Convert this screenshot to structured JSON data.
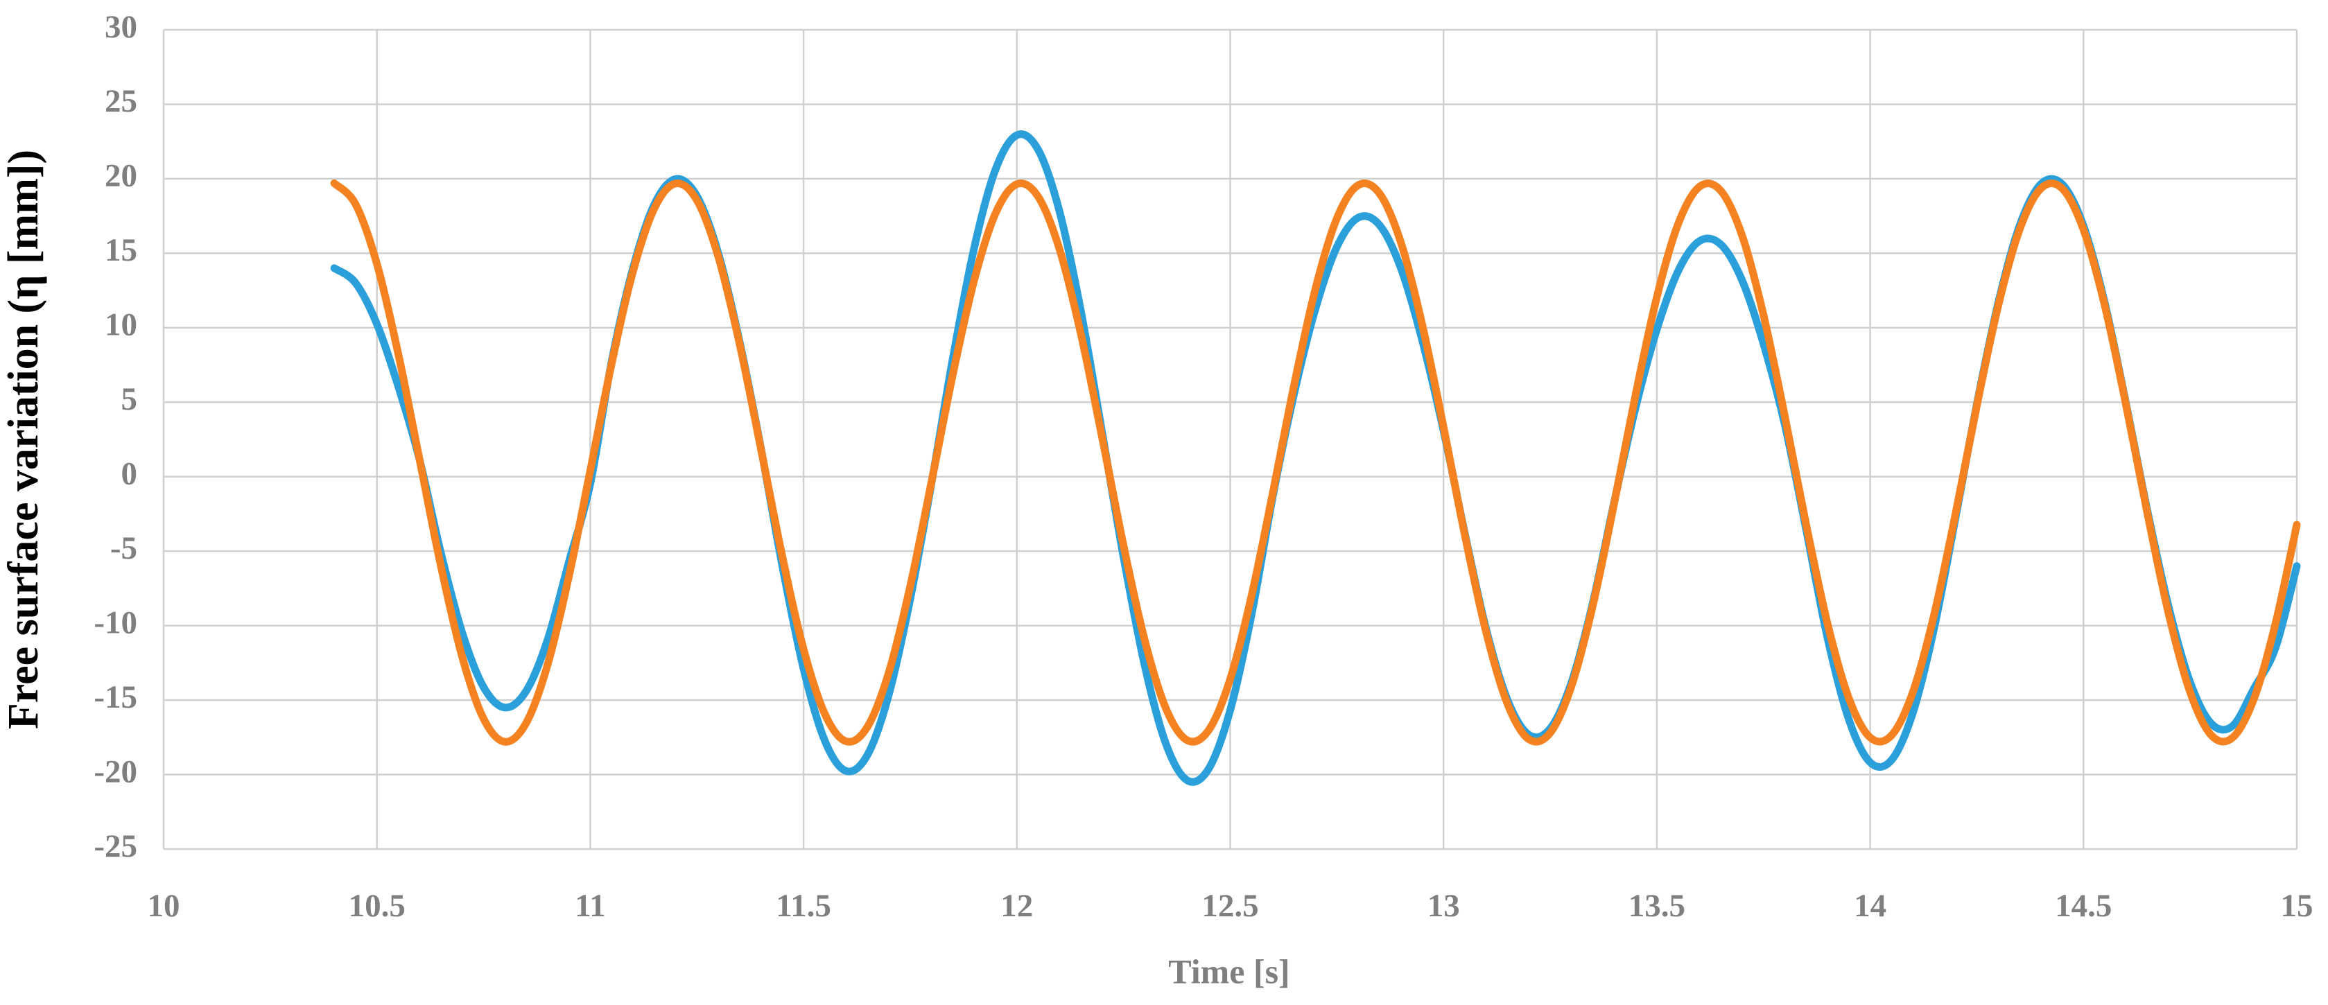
{
  "chart_data": {
    "type": "line",
    "xlabel": "Time [s]",
    "ylabel": "Free surface variation (η [mm])",
    "x": [
      10.4,
      10.45,
      10.5,
      10.55,
      10.6,
      10.65,
      10.7,
      10.75,
      10.8,
      10.85,
      10.9,
      10.95,
      11,
      11.05,
      11.1,
      11.15,
      11.2,
      11.25,
      11.3,
      11.35,
      11.4,
      11.45,
      11.5,
      11.55,
      11.6,
      11.65,
      11.7,
      11.75,
      11.8,
      11.85,
      11.9,
      11.95,
      12,
      12.05,
      12.1,
      12.15,
      12.2,
      12.25,
      12.3,
      12.35,
      12.4,
      12.45,
      12.5,
      12.55,
      12.6,
      12.65,
      12.7,
      12.75,
      12.8,
      12.85,
      12.9,
      12.95,
      13,
      13.05,
      13.1,
      13.15,
      13.2,
      13.25,
      13.3,
      13.35,
      13.4,
      13.45,
      13.5,
      13.55,
      13.6,
      13.65,
      13.7,
      13.75,
      13.8,
      13.85,
      13.9,
      13.95,
      14,
      14.05,
      14.1,
      14.15,
      14.2,
      14.25,
      14.3,
      14.35,
      14.4,
      14.45,
      14.5,
      14.55,
      14.6,
      14.65,
      14.7,
      14.75,
      14.8,
      14.85,
      14.9,
      14.95,
      15
    ],
    "series": [
      {
        "color": "#2b9fd9",
        "values": [
          14.0,
          13.0,
          10.24,
          6.06,
          1.13,
          -5.13,
          -10.49,
          -14.13,
          -15.5,
          -14.38,
          -10.95,
          -5.72,
          -0.48,
          7.71,
          13.97,
          18.27,
          19.98,
          18.84,
          15.01,
          9.08,
          1.93,
          -5.96,
          -12.9,
          -17.74,
          -19.76,
          -18.67,
          -14.61,
          -8.21,
          -0.42,
          7.96,
          15.37,
          20.63,
          22.93,
          21.94,
          17.79,
          11.12,
          2.93,
          -5.4,
          -12.73,
          -17.99,
          -20.4,
          -19.59,
          -15.68,
          -9.27,
          -1.31,
          5.6,
          11.29,
          15.42,
          17.39,
          16.89,
          14.0,
          9.16,
          3.09,
          -3.81,
          -10.25,
          -14.99,
          -17.33,
          -16.91,
          -13.8,
          -8.46,
          -1.7,
          4.62,
          9.89,
          13.81,
          15.82,
          15.59,
          13.17,
          8.92,
          3.48,
          -3.56,
          -10.82,
          -16.3,
          -19.18,
          -19.03,
          -15.86,
          -10.16,
          -2.78,
          4.86,
          11.65,
          16.83,
          19.64,
          19.64,
          16.84,
          11.66,
          4.87,
          -2.31,
          -8.79,
          -13.8,
          -16.59,
          -16.72,
          -14.2,
          -11.5,
          -6.0
        ]
      },
      {
        "color": "#f58220",
        "values": [
          19.7,
          18.29,
          14.28,
          8.25,
          1.13,
          -6.01,
          -12.11,
          -16.25,
          -17.8,
          -16.53,
          -12.63,
          -6.69,
          0.4,
          7.57,
          13.75,
          18.0,
          19.68,
          18.56,
          14.78,
          8.92,
          1.87,
          -5.33,
          -11.58,
          -15.94,
          -17.77,
          -16.78,
          -13.12,
          -7.35,
          -0.33,
          6.88,
          13.2,
          17.68,
          19.64,
          18.79,
          15.26,
          9.58,
          2.6,
          -4.63,
          -11.02,
          -15.61,
          -17.71,
          -17.0,
          -13.59,
          -8.0,
          -1.06,
          6.18,
          12.64,
          17.34,
          19.57,
          19.01,
          15.73,
          10.22,
          3.33,
          -3.93,
          -10.45,
          -15.26,
          -17.63,
          -17.2,
          -14.05,
          -8.64,
          -1.79,
          5.47,
          12.06,
          16.97,
          19.47,
          19.19,
          16.17,
          10.85,
          4.05,
          -3.22,
          -9.86,
          -14.87,
          -17.51,
          -17.37,
          -14.47,
          -9.26,
          -2.51,
          4.76,
          11.46,
          16.57,
          19.34,
          19.35,
          16.58,
          11.47,
          4.77,
          -2.5,
          -9.25,
          -14.47,
          -17.37,
          -17.51,
          -14.88,
          -9.87,
          -3.23
        ]
      }
    ],
    "xlim": [
      10,
      15
    ],
    "xticks": [
      10,
      10.5,
      11,
      11.5,
      12,
      12.5,
      13,
      13.5,
      14,
      14.5,
      15
    ],
    "ylim": [
      -25,
      30
    ],
    "yticks": [
      -25,
      -20,
      -15,
      -10,
      -5,
      0,
      5,
      10,
      15,
      20,
      25,
      30
    ],
    "grid": true
  }
}
